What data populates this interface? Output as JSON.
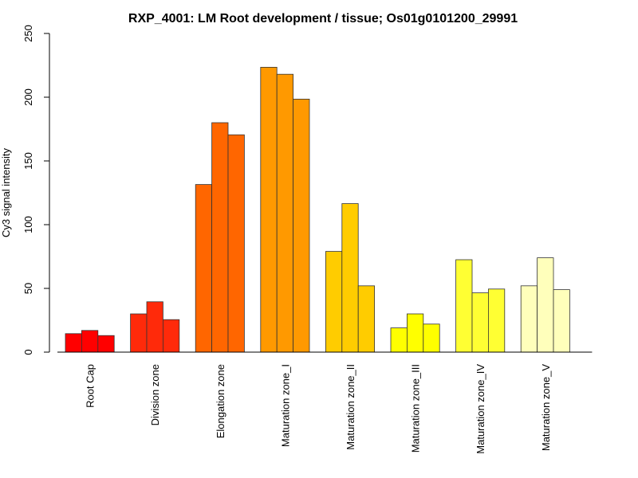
{
  "chart_data": {
    "type": "bar",
    "title": "RXP_4001: LM Root development / tissue; Os01g0101200_29991",
    "xlabel": "",
    "ylabel": "Cy3 signal intensity",
    "ylim": [
      0,
      250
    ],
    "yticks": [
      0,
      50,
      100,
      150,
      200,
      250
    ],
    "grid": false,
    "categories": [
      "Root Cap",
      "Division zone",
      "Elongation zone",
      "Maturation zone_I",
      "Maturation zone_II",
      "Maturation zone_III",
      "Maturation zone_IV",
      "Maturation zone_V"
    ],
    "colors": [
      "#FF0000",
      "#FF2A0A",
      "#FF6600",
      "#FF9900",
      "#FFCC00",
      "#FFFF00",
      "#FFFF33",
      "#FFFFBB"
    ],
    "groups": [
      {
        "category": "Root Cap",
        "values": [
          14.5,
          17,
          13
        ]
      },
      {
        "category": "Division zone",
        "values": [
          30,
          39.5,
          25.5
        ]
      },
      {
        "category": "Elongation zone",
        "values": [
          131.5,
          180,
          170.5
        ]
      },
      {
        "category": "Maturation zone_I",
        "values": [
          223.5,
          218,
          198.5
        ]
      },
      {
        "category": "Maturation zone_II",
        "values": [
          79,
          116.5,
          52
        ]
      },
      {
        "category": "Maturation zone_III",
        "values": [
          19,
          30,
          22
        ]
      },
      {
        "category": "Maturation zone_IV",
        "values": [
          72.5,
          46.5,
          49.5
        ]
      },
      {
        "category": "Maturation zone_V",
        "values": [
          52,
          74,
          49
        ]
      }
    ]
  }
}
